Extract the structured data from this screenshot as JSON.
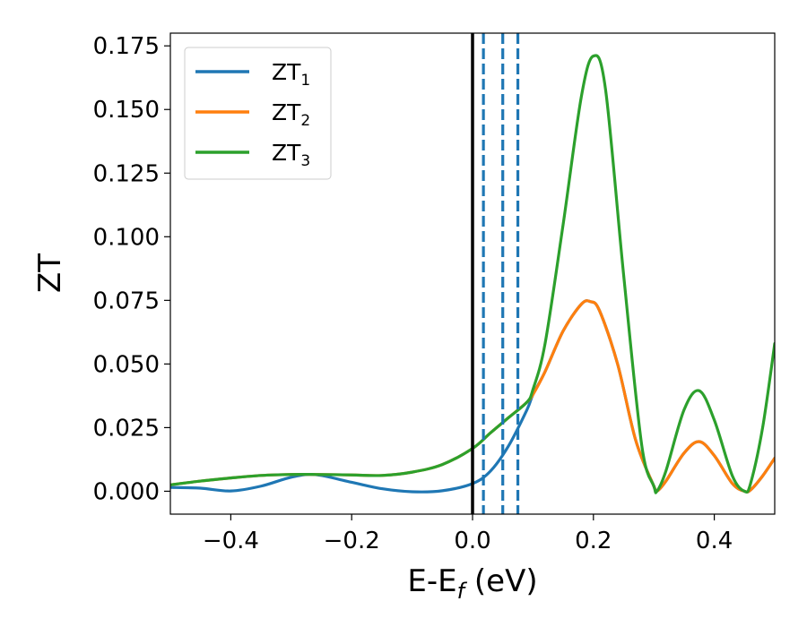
{
  "chart_data": {
    "type": "line",
    "xlabel": "E-E",
    "xlabel_sub": "f",
    "xlabel_unit": " (eV)",
    "ylabel": "ZT",
    "xlim": [
      -0.5,
      0.5
    ],
    "ylim": [
      -0.009,
      0.18
    ],
    "xticks": [
      -0.4,
      -0.2,
      0.0,
      0.2,
      0.4
    ],
    "xtick_labels": [
      "−0.4",
      "−0.2",
      "0.0",
      "0.2",
      "0.4"
    ],
    "yticks": [
      0.0,
      0.025,
      0.05,
      0.075,
      0.1,
      0.125,
      0.15,
      0.175
    ],
    "ytick_labels": [
      "0.000",
      "0.025",
      "0.050",
      "0.075",
      "0.100",
      "0.125",
      "0.150",
      "0.175"
    ],
    "grid": false,
    "legend": "top-left",
    "vlines": [
      {
        "x": 0.0,
        "style": "solid",
        "color": "#000000"
      },
      {
        "x": 0.018,
        "style": "dashed",
        "color": "#1f77b4"
      },
      {
        "x": 0.05,
        "style": "dashed",
        "color": "#1f77b4"
      },
      {
        "x": 0.075,
        "style": "dashed",
        "color": "#1f77b4"
      }
    ],
    "series": [
      {
        "name": "ZT",
        "sub": "1",
        "color": "#1f77b4",
        "x": [
          -0.5,
          -0.45,
          -0.4,
          -0.35,
          -0.3,
          -0.26,
          -0.2,
          -0.15,
          -0.1,
          -0.05,
          0.0,
          0.03,
          0.06,
          0.09,
          0.1,
          0.12,
          0.15,
          0.18,
          0.195,
          0.21,
          0.24,
          0.27,
          0.3,
          0.305,
          0.32,
          0.35,
          0.375,
          0.4,
          0.43,
          0.45,
          0.46,
          0.48,
          0.5
        ],
        "y": [
          0.0015,
          0.0012,
          0.0001,
          0.002,
          0.0055,
          0.0065,
          0.0035,
          0.001,
          -0.0002,
          0.0002,
          0.003,
          0.008,
          0.018,
          0.032,
          0.038,
          0.047,
          0.063,
          0.0735,
          0.0745,
          0.071,
          0.05,
          0.02,
          0.002,
          0.0,
          0.004,
          0.015,
          0.0195,
          0.014,
          0.003,
          0.0,
          0.0005,
          0.006,
          0.013
        ]
      },
      {
        "name": "ZT",
        "sub": "2",
        "color": "#ff7f0e",
        "x": [
          -0.5,
          -0.45,
          -0.4,
          -0.35,
          -0.3,
          -0.26,
          -0.2,
          -0.15,
          -0.1,
          -0.05,
          0.0,
          0.03,
          0.06,
          0.09,
          0.1,
          0.12,
          0.15,
          0.18,
          0.195,
          0.21,
          0.24,
          0.27,
          0.3,
          0.305,
          0.32,
          0.35,
          0.375,
          0.4,
          0.43,
          0.45,
          0.46,
          0.48,
          0.5
        ],
        "y": [
          0.0025,
          0.004,
          0.0052,
          0.0062,
          0.0066,
          0.0066,
          0.0064,
          0.0062,
          0.0075,
          0.0105,
          0.0168,
          0.023,
          0.029,
          0.035,
          0.038,
          0.047,
          0.063,
          0.0735,
          0.0745,
          0.071,
          0.05,
          0.02,
          0.002,
          0.0,
          0.004,
          0.015,
          0.0195,
          0.014,
          0.003,
          0.0,
          0.0005,
          0.006,
          0.013
        ]
      },
      {
        "name": "ZT",
        "sub": "3",
        "color": "#2ca02c",
        "x": [
          -0.5,
          -0.45,
          -0.4,
          -0.35,
          -0.3,
          -0.26,
          -0.2,
          -0.15,
          -0.1,
          -0.05,
          0.0,
          0.03,
          0.06,
          0.09,
          0.1,
          0.12,
          0.15,
          0.18,
          0.2,
          0.22,
          0.25,
          0.28,
          0.3,
          0.305,
          0.32,
          0.35,
          0.375,
          0.4,
          0.43,
          0.45,
          0.46,
          0.48,
          0.5
        ],
        "y": [
          0.0025,
          0.004,
          0.0052,
          0.0062,
          0.0066,
          0.0066,
          0.0064,
          0.0062,
          0.0075,
          0.0105,
          0.0168,
          0.023,
          0.029,
          0.035,
          0.04,
          0.058,
          0.105,
          0.155,
          0.171,
          0.158,
          0.085,
          0.018,
          0.002,
          0.0,
          0.008,
          0.032,
          0.0395,
          0.028,
          0.006,
          0.0,
          0.003,
          0.025,
          0.058
        ]
      }
    ]
  }
}
